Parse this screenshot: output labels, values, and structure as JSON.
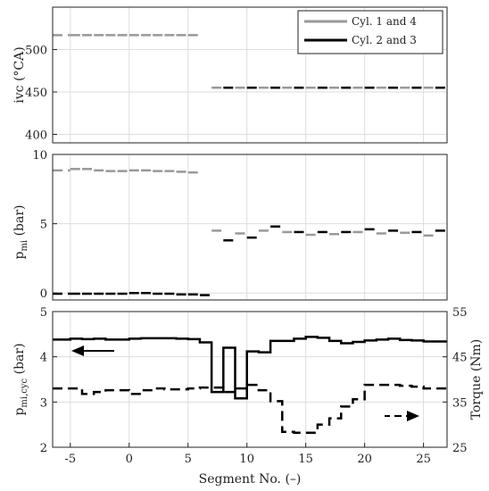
{
  "chart_data": [
    {
      "type": "line",
      "panel": "top",
      "ylabel": "ivc (°CA)",
      "xlim": [
        -6.5,
        27
      ],
      "ylim": [
        390,
        550
      ],
      "yticks": [
        400,
        450,
        500
      ],
      "grid": true,
      "legend_position": "top-right",
      "series": [
        {
          "name": "Cyl. 1 and 4",
          "color": "#999999",
          "style": "dashed",
          "segments": [
            {
              "x": -6.5,
              "y": 517
            },
            {
              "x": -5,
              "y": 517
            },
            {
              "x": -4,
              "y": 517
            },
            {
              "x": -3,
              "y": 517
            },
            {
              "x": -2,
              "y": 517
            },
            {
              "x": -1,
              "y": 517
            },
            {
              "x": 0,
              "y": 517
            },
            {
              "x": 1,
              "y": 517
            },
            {
              "x": 2,
              "y": 517
            },
            {
              "x": 3,
              "y": 517
            },
            {
              "x": 4,
              "y": 517
            },
            {
              "x": 5,
              "y": 517
            },
            {
              "x": 7,
              "y": 455
            },
            {
              "x": 9,
              "y": 455
            },
            {
              "x": 11,
              "y": 455
            },
            {
              "x": 13,
              "y": 455
            },
            {
              "x": 15,
              "y": 455
            },
            {
              "x": 17,
              "y": 455
            },
            {
              "x": 19,
              "y": 455
            },
            {
              "x": 21,
              "y": 455
            },
            {
              "x": 23,
              "y": 455
            },
            {
              "x": 25,
              "y": 455
            }
          ]
        },
        {
          "name": "Cyl. 2 and 3",
          "color": "#000000",
          "style": "dashed",
          "segments": [
            {
              "x": 8,
              "y": 455
            },
            {
              "x": 10,
              "y": 455
            },
            {
              "x": 12,
              "y": 455
            },
            {
              "x": 14,
              "y": 455
            },
            {
              "x": 16,
              "y": 455
            },
            {
              "x": 18,
              "y": 455
            },
            {
              "x": 20,
              "y": 455
            },
            {
              "x": 22,
              "y": 455
            },
            {
              "x": 24,
              "y": 455
            },
            {
              "x": 26,
              "y": 455
            }
          ]
        }
      ]
    },
    {
      "type": "line",
      "panel": "middle",
      "ylabel": "p_mi (bar)",
      "xlim": [
        -6.5,
        27
      ],
      "ylim": [
        -0.5,
        10
      ],
      "yticks": [
        0,
        5,
        10
      ],
      "grid": true,
      "series": [
        {
          "name": "Cyl. 1 and 4",
          "color": "#999999",
          "style": "dashed",
          "segments": [
            {
              "x": -6.5,
              "y": 8.85
            },
            {
              "x": -5,
              "y": 8.95
            },
            {
              "x": -4,
              "y": 8.95
            },
            {
              "x": -3,
              "y": 8.85
            },
            {
              "x": -2,
              "y": 8.8
            },
            {
              "x": -1,
              "y": 8.8
            },
            {
              "x": 0,
              "y": 8.85
            },
            {
              "x": 1,
              "y": 8.85
            },
            {
              "x": 2,
              "y": 8.8
            },
            {
              "x": 3,
              "y": 8.8
            },
            {
              "x": 4,
              "y": 8.75
            },
            {
              "x": 5,
              "y": 8.7
            },
            {
              "x": 7,
              "y": 4.5
            },
            {
              "x": 9,
              "y": 4.3
            },
            {
              "x": 11,
              "y": 4.5
            },
            {
              "x": 13,
              "y": 4.4
            },
            {
              "x": 15,
              "y": 4.2
            },
            {
              "x": 17,
              "y": 4.25
            },
            {
              "x": 19,
              "y": 4.4
            },
            {
              "x": 21,
              "y": 4.3
            },
            {
              "x": 23,
              "y": 4.35
            },
            {
              "x": 25,
              "y": 4.15
            }
          ]
        },
        {
          "name": "Cyl. 2 and 3",
          "color": "#000000",
          "style": "dashed",
          "segments": [
            {
              "x": -6.5,
              "y": -0.05
            },
            {
              "x": -5,
              "y": -0.05
            },
            {
              "x": -4,
              "y": -0.05
            },
            {
              "x": -3,
              "y": -0.05
            },
            {
              "x": -2,
              "y": -0.05
            },
            {
              "x": -1,
              "y": -0.05
            },
            {
              "x": 0,
              "y": 0.0
            },
            {
              "x": 1,
              "y": 0.0
            },
            {
              "x": 2,
              "y": -0.05
            },
            {
              "x": 3,
              "y": -0.05
            },
            {
              "x": 4,
              "y": -0.1
            },
            {
              "x": 5,
              "y": -0.1
            },
            {
              "x": 6,
              "y": -0.15
            },
            {
              "x": 8,
              "y": 3.8
            },
            {
              "x": 10,
              "y": 4.0
            },
            {
              "x": 12,
              "y": 4.8
            },
            {
              "x": 14,
              "y": 4.4
            },
            {
              "x": 16,
              "y": 4.4
            },
            {
              "x": 18,
              "y": 4.4
            },
            {
              "x": 20,
              "y": 4.6
            },
            {
              "x": 22,
              "y": 4.5
            },
            {
              "x": 24,
              "y": 4.4
            },
            {
              "x": 26,
              "y": 4.5
            }
          ]
        }
      ]
    },
    {
      "type": "line",
      "panel": "bottom",
      "xlabel": "Segment No. (–)",
      "ylabel_left": "p_mi,cyc (bar)",
      "ylabel_right": "Torque (Nm)",
      "xlim": [
        -6.5,
        27
      ],
      "xticks": [
        -5,
        0,
        5,
        10,
        15,
        20,
        25
      ],
      "ylim_left": [
        2,
        5
      ],
      "yticks_left": [
        2,
        3,
        4,
        5
      ],
      "ylim_right": [
        25,
        55
      ],
      "yticks_right": [
        25,
        35,
        45,
        55
      ],
      "grid": true,
      "series": [
        {
          "axis": "left",
          "color": "#000000",
          "style": "solid-step",
          "x": [
            -6.5,
            -5,
            -4,
            -3,
            -2,
            -1,
            0,
            1,
            2,
            3,
            4,
            5,
            6,
            7,
            8,
            9,
            10,
            11,
            12,
            13,
            14,
            15,
            16,
            17,
            18,
            19,
            20,
            21,
            22,
            23,
            24,
            25,
            26,
            27
          ],
          "y": [
            4.38,
            4.4,
            4.39,
            4.4,
            4.38,
            4.38,
            4.4,
            4.41,
            4.41,
            4.41,
            4.4,
            4.39,
            4.32,
            3.22,
            4.2,
            3.08,
            4.12,
            4.1,
            4.35,
            4.35,
            4.4,
            4.44,
            4.42,
            4.35,
            4.3,
            4.33,
            4.36,
            4.38,
            4.4,
            4.37,
            4.36,
            4.34,
            4.34,
            4.34
          ]
        },
        {
          "axis": "right",
          "color": "#000000",
          "style": "dashed-step",
          "x": [
            -6.5,
            -5,
            -4,
            -3,
            -2,
            -1,
            0,
            1,
            2,
            3,
            4,
            5,
            6,
            7,
            8,
            9,
            10,
            11,
            12,
            13,
            14,
            15,
            16,
            17,
            18,
            19,
            20,
            21,
            22,
            23,
            24,
            25,
            26,
            27
          ],
          "y": [
            38.0,
            38.0,
            36.8,
            37.2,
            37.6,
            37.6,
            36.8,
            37.6,
            38.0,
            37.8,
            37.8,
            38.0,
            38.2,
            38.2,
            37.2,
            38.0,
            38.8,
            37.6,
            35.2,
            28.4,
            28.2,
            28.2,
            30.0,
            31.4,
            34.0,
            35.6,
            38.8,
            38.8,
            38.8,
            38.6,
            38.4,
            38.0,
            38.0,
            38.0
          ]
        }
      ],
      "annotations": [
        {
          "text": "arrow pointing left",
          "target_axis": "left",
          "x_data": [
            -1.5,
            -4.5
          ],
          "y_data": 4.21
        },
        {
          "text": "arrow pointing right",
          "target_axis": "right",
          "x_data": [
            16,
            19.5
          ],
          "y_data": 31.9
        }
      ]
    }
  ]
}
